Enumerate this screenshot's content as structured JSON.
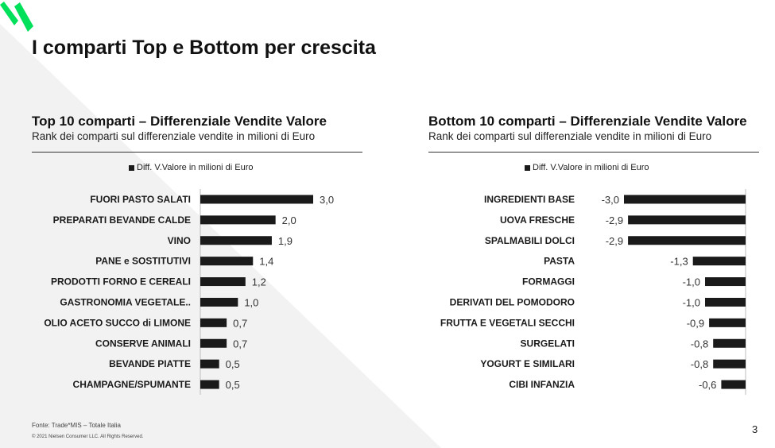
{
  "slide": {
    "title": "I comparti Top e Bottom per crescita",
    "page_number": "3",
    "footer_source": "Fonte: Trade*MIS – Totale Italia",
    "footer_copyright": "© 2021 Nielsen Consumer LLC. All Rights Reserved.",
    "brand_color": "#00e05a"
  },
  "top_panel": {
    "title": "Top 10 comparti – Differenziale Vendite Valore",
    "subtitle": "Rank dei comparti sul differenziale vendite in milioni di Euro",
    "legend": "Diff. V.Valore in milioni di Euro"
  },
  "bottom_panel": {
    "title": "Bottom 10 comparti – Differenziale Vendite Valore",
    "subtitle": "Rank dei comparti sul differenziale vendite in milioni di Euro",
    "legend": "Diff. V.Valore in milioni di Euro"
  },
  "chart_data": [
    {
      "type": "bar",
      "orientation": "horizontal",
      "series": [
        {
          "name": "Diff. V.Valore in milioni di Euro",
          "color": "#1a1a1a",
          "values": [
            3.0,
            2.0,
            1.9,
            1.4,
            1.2,
            1.0,
            0.7,
            0.7,
            0.5,
            0.5
          ]
        }
      ],
      "categories": [
        "FUORI PASTO SALATI",
        "PREPARATI BEVANDE CALDE",
        "VINO",
        "PANE e SOSTITUTIVI",
        "PRODOTTI FORNO E CEREALI",
        "GASTRONOMIA VEGETALE..",
        "OLIO ACETO SUCCO di LIMONE",
        "CONSERVE ANIMALI",
        "BEVANDE PIATTE",
        "CHAMPAGNE/SPUMANTE"
      ],
      "data_labels": [
        "3,0",
        "2,0",
        "1,9",
        "1,4",
        "1,2",
        "1,0",
        "0,7",
        "0,7",
        "0,5",
        "0,5"
      ],
      "title": "Top 10 comparti – Differenziale Vendite Valore",
      "grid": false,
      "legend_position": "top"
    },
    {
      "type": "bar",
      "orientation": "horizontal",
      "series": [
        {
          "name": "Diff. V.Valore in milioni di Euro",
          "color": "#1a1a1a",
          "values": [
            -3.0,
            -2.9,
            -2.9,
            -1.3,
            -1.0,
            -1.0,
            -0.9,
            -0.8,
            -0.8,
            -0.6
          ]
        }
      ],
      "categories": [
        "INGREDIENTI BASE",
        "UOVA FRESCHE",
        "SPALMABILI DOLCI",
        "PASTA",
        "FORMAGGI",
        "DERIVATI DEL POMODORO",
        "FRUTTA E VEGETALI SECCHI",
        "SURGELATI",
        "YOGURT E SIMILARI",
        "CIBI INFANZIA"
      ],
      "data_labels": [
        "-3,0",
        "-2,9",
        "-2,9",
        "-1,3",
        "-1,0",
        "-1,0",
        "-0,9",
        "-0,8",
        "-0,8",
        "-0,6"
      ],
      "title": "Bottom 10 comparti – Differenziale Vendite Valore",
      "grid": false,
      "legend_position": "top"
    }
  ]
}
